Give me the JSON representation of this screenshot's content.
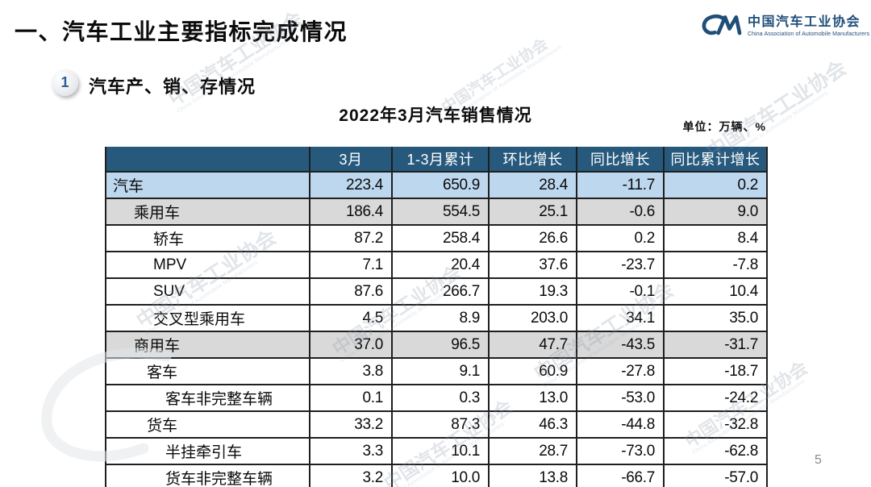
{
  "slide": {
    "title": "一、汽车工业主要指标完成情况",
    "page_number": "5"
  },
  "logo": {
    "mark": "CM",
    "name_cn": "中国汽车工业协会",
    "name_en": "China Association of Automobile Manufacturers"
  },
  "section": {
    "badge_number": "1",
    "title": "汽车产、销、存情况"
  },
  "table": {
    "title": "2022年3月汽车销售情况",
    "unit_label": "单位：万辆、%",
    "columns": [
      "",
      "3月",
      "1-3月累计",
      "环比增长",
      "同比增长",
      "同比累计增长"
    ],
    "rows": [
      {
        "label": "汽车",
        "indent": 0,
        "shade": "blue",
        "values": [
          "223.4",
          "650.9",
          "28.4",
          "-11.7",
          "0.2"
        ]
      },
      {
        "label": "乘用车",
        "indent": 1,
        "shade": "gray",
        "values": [
          "186.4",
          "554.5",
          "25.1",
          "-0.6",
          "9.0"
        ]
      },
      {
        "label": "轿车",
        "indent": 3,
        "shade": "none",
        "values": [
          "87.2",
          "258.4",
          "26.6",
          "0.2",
          "8.4"
        ]
      },
      {
        "label": "MPV",
        "indent": 3,
        "shade": "none",
        "values": [
          "7.1",
          "20.4",
          "37.6",
          "-23.7",
          "-7.8"
        ]
      },
      {
        "label": "SUV",
        "indent": 3,
        "shade": "none",
        "values": [
          "87.6",
          "266.7",
          "19.3",
          "-0.1",
          "10.4"
        ]
      },
      {
        "label": "交叉型乘用车",
        "indent": 3,
        "shade": "none",
        "values": [
          "4.5",
          "8.9",
          "203.0",
          "34.1",
          "35.0"
        ]
      },
      {
        "label": "商用车",
        "indent": 1,
        "shade": "gray",
        "values": [
          "37.0",
          "96.5",
          "47.7",
          "-43.5",
          "-31.7"
        ]
      },
      {
        "label": "客车",
        "indent": 2,
        "shade": "none",
        "values": [
          "3.8",
          "9.1",
          "60.9",
          "-27.8",
          "-18.7"
        ]
      },
      {
        "label": "客车非完整车辆",
        "indent": 4,
        "shade": "none",
        "values": [
          "0.1",
          "0.3",
          "13.0",
          "-53.0",
          "-24.2"
        ]
      },
      {
        "label": "货车",
        "indent": 2,
        "shade": "none",
        "values": [
          "33.2",
          "87.3",
          "46.3",
          "-44.8",
          "-32.8"
        ]
      },
      {
        "label": "半挂牵引车",
        "indent": 4,
        "shade": "none",
        "values": [
          "3.3",
          "10.1",
          "28.7",
          "-73.0",
          "-62.8"
        ]
      },
      {
        "label": "货车非完整车辆",
        "indent": 4,
        "shade": "none",
        "values": [
          "3.2",
          "10.0",
          "13.8",
          "-66.7",
          "-57.0"
        ]
      }
    ]
  },
  "watermark": {
    "text_cn": "中国汽车工业协会",
    "text_en": "China Association of Automobile Manufacturers"
  },
  "colors": {
    "header_bg": "#27597D",
    "row_blue": "#BDD7EE",
    "row_gray": "#D9D9D9",
    "table_border": "#1F1F1F",
    "brand_blue": "#1F4E79",
    "badge_number": "#2E6096",
    "page_number": "#8A8A8A"
  }
}
